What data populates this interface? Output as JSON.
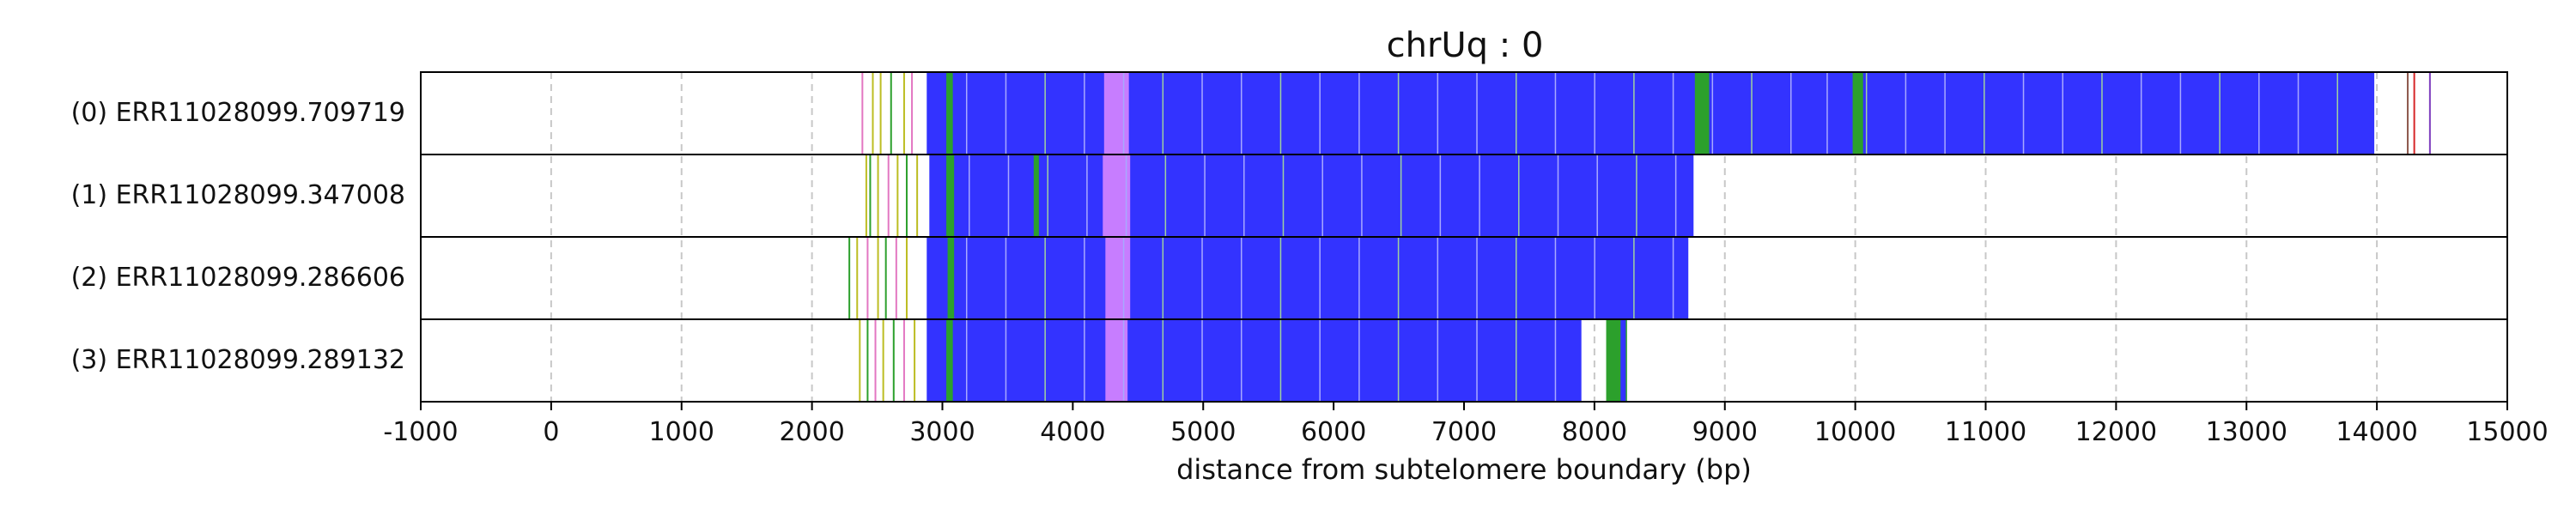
{
  "chart_data": {
    "type": "bar",
    "title": "chrUq : 0",
    "xlabel": "distance from subtelomere boundary (bp)",
    "ylabel": "",
    "xlim": [
      -1000,
      15000
    ],
    "xticks": [
      "-1000",
      "0",
      "1000",
      "2000",
      "3000",
      "4000",
      "5000",
      "6000",
      "7000",
      "8000",
      "9000",
      "10000",
      "11000",
      "12000",
      "13000",
      "14000",
      "15000"
    ],
    "grid": "vertical dashed",
    "colors": {
      "blue": "#3333ff",
      "green": "#2ca02c",
      "magenta": "#e377c2",
      "violet": "#c77dff",
      "olive": "#bcbd22",
      "brown": "#8c564b",
      "red": "#d62728",
      "purple": "#7f3fbf"
    },
    "reads": [
      {
        "label": "(0) ERR11028099.709719",
        "segments": [
          {
            "start": 2880,
            "end": 13980,
            "color": "blue"
          },
          {
            "start": 4240,
            "end": 4430,
            "color": "violet"
          },
          {
            "start": 3030,
            "end": 3080,
            "color": "green"
          },
          {
            "start": 8770,
            "end": 8880,
            "color": "green"
          },
          {
            "start": 9980,
            "end": 10060,
            "color": "green"
          }
        ],
        "marks": [
          {
            "x": 2380,
            "color": "magenta"
          },
          {
            "x": 2460,
            "color": "olive"
          },
          {
            "x": 2520,
            "color": "olive"
          },
          {
            "x": 2600,
            "color": "green"
          },
          {
            "x": 2700,
            "color": "olive"
          },
          {
            "x": 2760,
            "color": "magenta"
          },
          {
            "x": 3350,
            "color": "green"
          },
          {
            "x": 3720,
            "color": "green"
          },
          {
            "x": 5420,
            "color": "green"
          },
          {
            "x": 6100,
            "color": "green"
          },
          {
            "x": 7500,
            "color": "green"
          },
          {
            "x": 9300,
            "color": "green"
          },
          {
            "x": 10400,
            "color": "green"
          },
          {
            "x": 11100,
            "color": "green"
          },
          {
            "x": 12300,
            "color": "green"
          },
          {
            "x": 13200,
            "color": "green"
          },
          {
            "x": 13700,
            "color": "green"
          },
          {
            "x": 14230,
            "color": "brown"
          },
          {
            "x": 14280,
            "color": "red"
          },
          {
            "x": 14400,
            "color": "purple"
          }
        ]
      },
      {
        "label": "(1) ERR11028099.347008",
        "segments": [
          {
            "start": 2900,
            "end": 8760,
            "color": "blue"
          },
          {
            "start": 4230,
            "end": 4440,
            "color": "violet"
          },
          {
            "start": 3030,
            "end": 3090,
            "color": "green"
          },
          {
            "start": 3700,
            "end": 3740,
            "color": "green"
          }
        ],
        "marks": [
          {
            "x": 2410,
            "color": "olive"
          },
          {
            "x": 2440,
            "color": "green"
          },
          {
            "x": 2500,
            "color": "olive"
          },
          {
            "x": 2580,
            "color": "magenta"
          },
          {
            "x": 2650,
            "color": "olive"
          },
          {
            "x": 2720,
            "color": "green"
          },
          {
            "x": 2800,
            "color": "olive"
          },
          {
            "x": 3450,
            "color": "green"
          },
          {
            "x": 4600,
            "color": "green"
          },
          {
            "x": 5100,
            "color": "green"
          },
          {
            "x": 5800,
            "color": "green"
          },
          {
            "x": 6400,
            "color": "green"
          },
          {
            "x": 7300,
            "color": "green"
          },
          {
            "x": 7900,
            "color": "green"
          }
        ]
      },
      {
        "label": "(2) ERR11028099.286606",
        "segments": [
          {
            "start": 2880,
            "end": 8720,
            "color": "blue"
          },
          {
            "start": 4250,
            "end": 4440,
            "color": "violet"
          },
          {
            "start": 3040,
            "end": 3090,
            "color": "green"
          }
        ],
        "marks": [
          {
            "x": 2280,
            "color": "green"
          },
          {
            "x": 2340,
            "color": "olive"
          },
          {
            "x": 2420,
            "color": "magenta"
          },
          {
            "x": 2500,
            "color": "olive"
          },
          {
            "x": 2560,
            "color": "green"
          },
          {
            "x": 2640,
            "color": "magenta"
          },
          {
            "x": 2720,
            "color": "olive"
          },
          {
            "x": 3300,
            "color": "green"
          },
          {
            "x": 3800,
            "color": "green"
          },
          {
            "x": 4700,
            "color": "green"
          },
          {
            "x": 6700,
            "color": "green"
          },
          {
            "x": 6800,
            "color": "green"
          },
          {
            "x": 7050,
            "color": "green"
          }
        ]
      },
      {
        "label": "(3) ERR11028099.289132",
        "segments": [
          {
            "start": 2880,
            "end": 7900,
            "color": "blue"
          },
          {
            "start": 4250,
            "end": 4420,
            "color": "violet"
          },
          {
            "start": 3030,
            "end": 3080,
            "color": "green"
          },
          {
            "start": 8090,
            "end": 8250,
            "color": "green"
          },
          {
            "start": 8200,
            "end": 8240,
            "color": "blue"
          }
        ],
        "marks": [
          {
            "x": 2360,
            "color": "olive"
          },
          {
            "x": 2420,
            "color": "green"
          },
          {
            "x": 2480,
            "color": "magenta"
          },
          {
            "x": 2540,
            "color": "olive"
          },
          {
            "x": 2620,
            "color": "green"
          },
          {
            "x": 2700,
            "color": "magenta"
          },
          {
            "x": 2780,
            "color": "olive"
          },
          {
            "x": 3500,
            "color": "green"
          },
          {
            "x": 5250,
            "color": "green"
          },
          {
            "x": 5300,
            "color": "green"
          },
          {
            "x": 5900,
            "color": "green"
          },
          {
            "x": 6500,
            "color": "green"
          },
          {
            "x": 7200,
            "color": "green"
          }
        ]
      }
    ]
  }
}
